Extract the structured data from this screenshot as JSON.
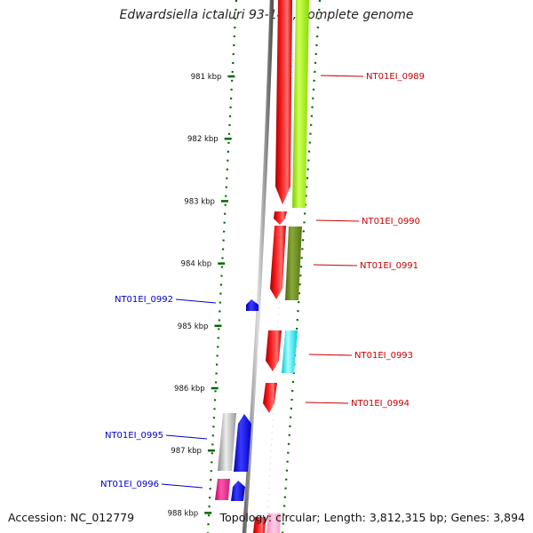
{
  "title": "Edwardsiella ictaluri 93-146, complete genome",
  "footer": {
    "accession": "Accession: NC_012779",
    "summary": "Topology: circular; Length: 3,812,315 bp; Genes: 3,894"
  },
  "ticks": [
    {
      "label": "981 kbp",
      "kbp": 981
    },
    {
      "label": "982 kbp",
      "kbp": 982
    },
    {
      "label": "983 kbp",
      "kbp": 983
    },
    {
      "label": "984 kbp",
      "kbp": 984
    },
    {
      "label": "985 kbp",
      "kbp": 985
    },
    {
      "label": "986 kbp",
      "kbp": 986
    },
    {
      "label": "987 kbp",
      "kbp": 987
    },
    {
      "label": "988 kbp",
      "kbp": 988
    }
  ],
  "gene_labels": [
    {
      "name": "NT01EI_0989",
      "strand": "forward"
    },
    {
      "name": "NT01EI_0990",
      "strand": "forward"
    },
    {
      "name": "NT01EI_0991",
      "strand": "forward"
    },
    {
      "name": "NT01EI_0992",
      "strand": "reverse"
    },
    {
      "name": "NT01EI_0993",
      "strand": "forward"
    },
    {
      "name": "NT01EI_0994",
      "strand": "forward"
    },
    {
      "name": "NT01EI_0995",
      "strand": "reverse"
    },
    {
      "name": "NT01EI_0996",
      "strand": "reverse"
    }
  ],
  "colors": {
    "forward_label": "#cc0000",
    "reverse_label": "#0000cc",
    "tick": "#006600",
    "backbone": "#888888"
  }
}
